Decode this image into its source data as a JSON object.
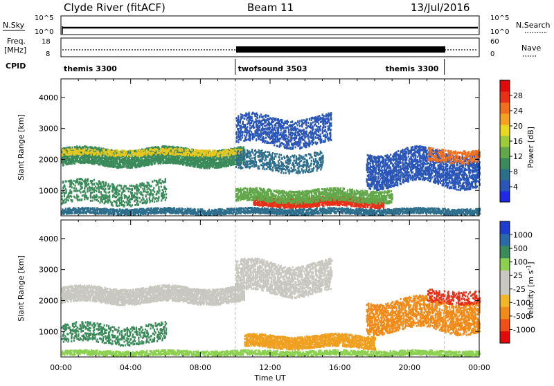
{
  "header": {
    "title": "Clyde River (fitACF)",
    "beam": "Beam 11",
    "date": "13/Jul/2016"
  },
  "summary_panels": {
    "nsky_label": "N.Sky",
    "nsky_ticks": [
      "10^5",
      "10^0"
    ],
    "nsearch_label": "N.Search",
    "nsearch_ticks": [
      "10^5",
      "10^0"
    ],
    "freq_label_line1": "Freq.",
    "freq_label_line2": "[MHz]",
    "freq_ticks": [
      "18",
      "8"
    ],
    "nave_label": "Nave",
    "nave_ticks": [
      "60",
      "0"
    ],
    "cpid_label": "CPID",
    "cpid_segments": [
      {
        "name": "themis 3300",
        "start_hour": 0,
        "end_hour": 10
      },
      {
        "name": "twofsound 3503",
        "start_hour": 10,
        "end_hour": 22
      },
      {
        "name": "themis 3300",
        "start_hour": 22,
        "end_hour": 24
      }
    ]
  },
  "chart_data": [
    {
      "type": "heatmap",
      "title": "",
      "xlabel": "Time UT",
      "ylabel": "Slant Range [km]",
      "xlim_hours": [
        0,
        24
      ],
      "ylim_km": [
        180,
        4600
      ],
      "y_ticks": [
        1000,
        2000,
        3000,
        4000
      ],
      "x_ticks": [
        "00:00",
        "04:00",
        "08:00",
        "12:00",
        "16:00",
        "20:00",
        "00:00"
      ],
      "colorbar": {
        "label": "Power [dB]",
        "ticks": [
          "28",
          "24",
          "20",
          "16",
          "12",
          "8",
          "4"
        ],
        "colors_bottom_to_top": [
          "#1e28e6",
          "#2a56b8",
          "#2d6e8c",
          "#3a8a5a",
          "#62a84a",
          "#9ccc3a",
          "#e8d820",
          "#f5a020",
          "#f07020",
          "#e83018",
          "#e00a0a"
        ]
      },
      "feature_bands": [
        {
          "t0": 0.0,
          "t1": 10.5,
          "r_center": 2050,
          "r_width": 550,
          "color": "#3a8a5a",
          "density": 0.9
        },
        {
          "t0": 0.0,
          "t1": 10.5,
          "r_center": 2200,
          "r_width": 200,
          "color": "#e8c820",
          "density": 0.45
        },
        {
          "t0": 10.0,
          "t1": 15.5,
          "r_center": 2900,
          "r_width": 900,
          "color": "#2a56b8",
          "density": 0.35
        },
        {
          "t0": 10.0,
          "t1": 15.0,
          "r_center": 1900,
          "r_width": 600,
          "color": "#2d6e8c",
          "density": 0.3
        },
        {
          "t0": 11.0,
          "t1": 18.5,
          "r_center": 600,
          "r_width": 300,
          "color": "#e83018",
          "density": 0.9
        },
        {
          "t0": 10.0,
          "t1": 19.0,
          "r_center": 800,
          "r_width": 400,
          "color": "#62a84a",
          "density": 0.6
        },
        {
          "t0": 0.0,
          "t1": 6.0,
          "r_center": 900,
          "r_width": 700,
          "color": "#3a8a5a",
          "density": 0.25
        },
        {
          "t0": 17.5,
          "t1": 24.0,
          "r_center": 1700,
          "r_width": 1100,
          "color": "#2a56b8",
          "density": 0.5
        },
        {
          "t0": 21.0,
          "t1": 24.0,
          "r_center": 2100,
          "r_width": 400,
          "color": "#f07020",
          "density": 0.35
        },
        {
          "t0": 0.0,
          "t1": 24.0,
          "r_center": 300,
          "r_width": 180,
          "color": "#2d6e8c",
          "density": 0.8
        }
      ]
    },
    {
      "type": "heatmap",
      "title": "",
      "xlabel": "Time UT",
      "ylabel": "Slant Range [km]",
      "xlim_hours": [
        0,
        24
      ],
      "ylim_km": [
        180,
        4600
      ],
      "y_ticks": [
        1000,
        2000,
        3000,
        4000
      ],
      "x_ticks": [
        "00:00",
        "04:00",
        "08:00",
        "12:00",
        "16:00",
        "20:00",
        "00:00"
      ],
      "colorbar": {
        "label": "Velocity [m s^-1]",
        "ticks": [
          "1000",
          "500",
          "100",
          "25",
          "-25",
          "-100",
          "-500",
          "-1000"
        ],
        "colors_bottom_to_top": [
          "#e00a0a",
          "#f05018",
          "#f08a18",
          "#f0b828",
          "#c8c8c0",
          "#c8c8c0",
          "#8cd050",
          "#3a8a5a",
          "#2a6aa8",
          "#1e3cd0"
        ]
      },
      "feature_bands": [
        {
          "t0": 0.0,
          "t1": 10.5,
          "r_center": 2150,
          "r_width": 500,
          "color": "#c8c8c0",
          "density": 0.85
        },
        {
          "t0": 10.0,
          "t1": 15.5,
          "r_center": 2700,
          "r_width": 1000,
          "color": "#c8c8c0",
          "density": 0.5
        },
        {
          "t0": 10.5,
          "t1": 18.0,
          "r_center": 650,
          "r_width": 400,
          "color": "#f0a020",
          "density": 0.8
        },
        {
          "t0": 0.0,
          "t1": 6.0,
          "r_center": 900,
          "r_width": 600,
          "color": "#3a8a5a",
          "density": 0.25
        },
        {
          "t0": 17.5,
          "t1": 24.0,
          "r_center": 1500,
          "r_width": 1000,
          "color": "#f08a18",
          "density": 0.45
        },
        {
          "t0": 21.0,
          "t1": 24.0,
          "r_center": 2100,
          "r_width": 400,
          "color": "#e83018",
          "density": 0.3
        },
        {
          "t0": 0.0,
          "t1": 24.0,
          "r_center": 280,
          "r_width": 150,
          "color": "#8cd050",
          "density": 0.8
        }
      ]
    }
  ]
}
